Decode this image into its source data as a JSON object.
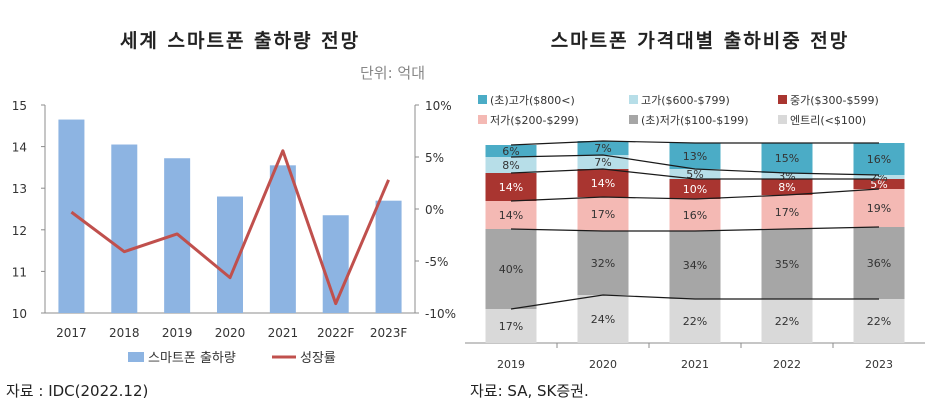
{
  "left_title": "세계 스마트폰 출하량 전망",
  "left_unit": "단위: 억대",
  "left_source": "자료 : IDC(2022.12)",
  "right_title": "스마트폰 가격대별 출하비중 전망",
  "right_source": "자료: SA, SK증권.",
  "colors": {
    "shipment_bar": "#8DB4E2",
    "growth_line": "#C0504D",
    "ultra_high": "#4BACC6",
    "high": "#B7DEE8",
    "mid": "#A93530",
    "low": "#F4B9B4",
    "ultra_low": "#A6A6A6",
    "entry": "#D9D9D9"
  },
  "chart_data": [
    {
      "type": "bar",
      "categories": [
        "2017",
        "2018",
        "2019",
        "2020",
        "2021",
        "2022F",
        "2023F"
      ],
      "series": [
        {
          "name": "스마트폰 출하량",
          "type": "bar",
          "axis": "left",
          "values": [
            14.65,
            14.05,
            13.72,
            12.8,
            13.55,
            12.35,
            12.7
          ]
        },
        {
          "name": "성장률",
          "type": "line",
          "axis": "right",
          "values": [
            -0.3,
            -4.1,
            -2.4,
            -6.6,
            5.6,
            -9.1,
            2.8
          ]
        }
      ],
      "ylim_left": [
        10,
        15
      ],
      "yticks_left": [
        "10",
        "11",
        "12",
        "13",
        "14",
        "15"
      ],
      "ylim_right": [
        -10,
        10
      ],
      "yticks_right": [
        "-10%",
        "-5%",
        "0%",
        "5%",
        "10%"
      ],
      "legend_position": "bottom"
    },
    {
      "type": "bar",
      "stacked": true,
      "percent": true,
      "categories": [
        "2019",
        "2020",
        "2021",
        "2022",
        "2023"
      ],
      "series": [
        {
          "name": "엔트리(<$100)",
          "key": "entry",
          "values": [
            17,
            24,
            22,
            22,
            22
          ]
        },
        {
          "name": "(초)저가($100-$199)",
          "key": "ultra_low",
          "values": [
            40,
            32,
            34,
            35,
            36
          ]
        },
        {
          "name": "저가($200-$299)",
          "key": "low",
          "values": [
            14,
            17,
            16,
            17,
            19
          ]
        },
        {
          "name": "중가($300-$599)",
          "key": "mid",
          "values": [
            14,
            14,
            10,
            8,
            5
          ]
        },
        {
          "name": "고가($600-$799)",
          "key": "high",
          "values": [
            8,
            7,
            5,
            3,
            2
          ]
        },
        {
          "name": "(초)고가($800<)",
          "key": "ultra_high",
          "values": [
            6,
            7,
            13,
            15,
            16
          ]
        }
      ],
      "legend_order": [
        "ultra_high",
        "high",
        "mid",
        "low",
        "ultra_low",
        "entry"
      ],
      "legend_position": "top"
    }
  ]
}
